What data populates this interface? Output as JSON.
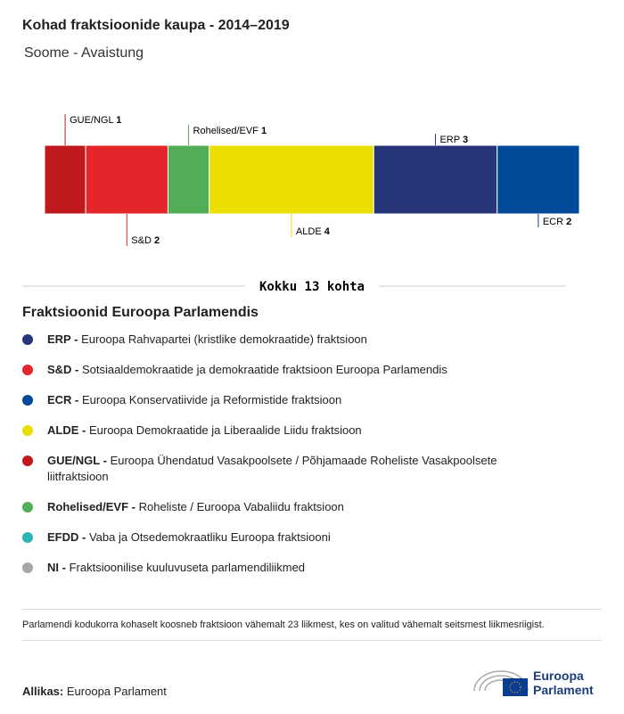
{
  "header": {
    "title": "Kohad fraktsioonide kaupa - 2014–2019",
    "subtitle": "Soome - Avaistung"
  },
  "chart_data": {
    "type": "bar",
    "orientation": "horizontal",
    "stacked": true,
    "categories": [
      "GUE/NGL",
      "S&D",
      "Rohelised/EVF",
      "ALDE",
      "ERP",
      "ECR"
    ],
    "values": [
      1,
      2,
      1,
      4,
      3,
      2
    ],
    "colors": [
      "#c0191d",
      "#e4252a",
      "#52ad57",
      "#ebdf00",
      "#263479",
      "#004a9a"
    ],
    "total_label": "Kokku 13 kohta"
  },
  "legend": {
    "title": "Fraktsioonid Euroopa Parlamendis",
    "items": [
      {
        "abbr": "ERP -",
        "text": "Euroopa Rahvapartei (kristlike demokraatide) fraktsioon",
        "color": "#263479"
      },
      {
        "abbr": "S&D -",
        "text": "Sotsiaaldemokraatide ja demokraatide fraktsioon Euroopa Parlamendis",
        "color": "#e4252a"
      },
      {
        "abbr": "ECR -",
        "text": "Euroopa Konservatiivide ja Reformistide fraktsioon",
        "color": "#004a9a"
      },
      {
        "abbr": "ALDE -",
        "text": "Euroopa Demokraatide ja Liberaalide Liidu fraktsioon",
        "color": "#ebdf00"
      },
      {
        "abbr": "GUE/NGL -",
        "text": "Euroopa Ühendatud Vasakpoolsete / Põhjamaade Roheliste Vasakpoolsete liitfraktsioon",
        "color": "#c0191d"
      },
      {
        "abbr": "Rohelised/EVF -",
        "text": "Roheliste / Euroopa Vabaliidu fraktsioon",
        "color": "#52ad57"
      },
      {
        "abbr": "EFDD -",
        "text": "Vaba ja Otsedemokraatliku Euroopa fraktsiooni",
        "color": "#2bb5b7"
      },
      {
        "abbr": "NI -",
        "text": "Fraktsioonilise kuuluvuseta parlamendiliikmed",
        "color": "#a5a5a5"
      }
    ]
  },
  "footer": {
    "note": "Parlamendi kodukorra kohaselt koosneb fraktsioon vähemalt 23 liikmest, kes on valitud vähemalt seitsmest liikmesriigist.",
    "source_label": "Allikas:",
    "source": "Euroopa Parlament",
    "logo_line1": "Euroopa",
    "logo_line2": "Parlament"
  }
}
